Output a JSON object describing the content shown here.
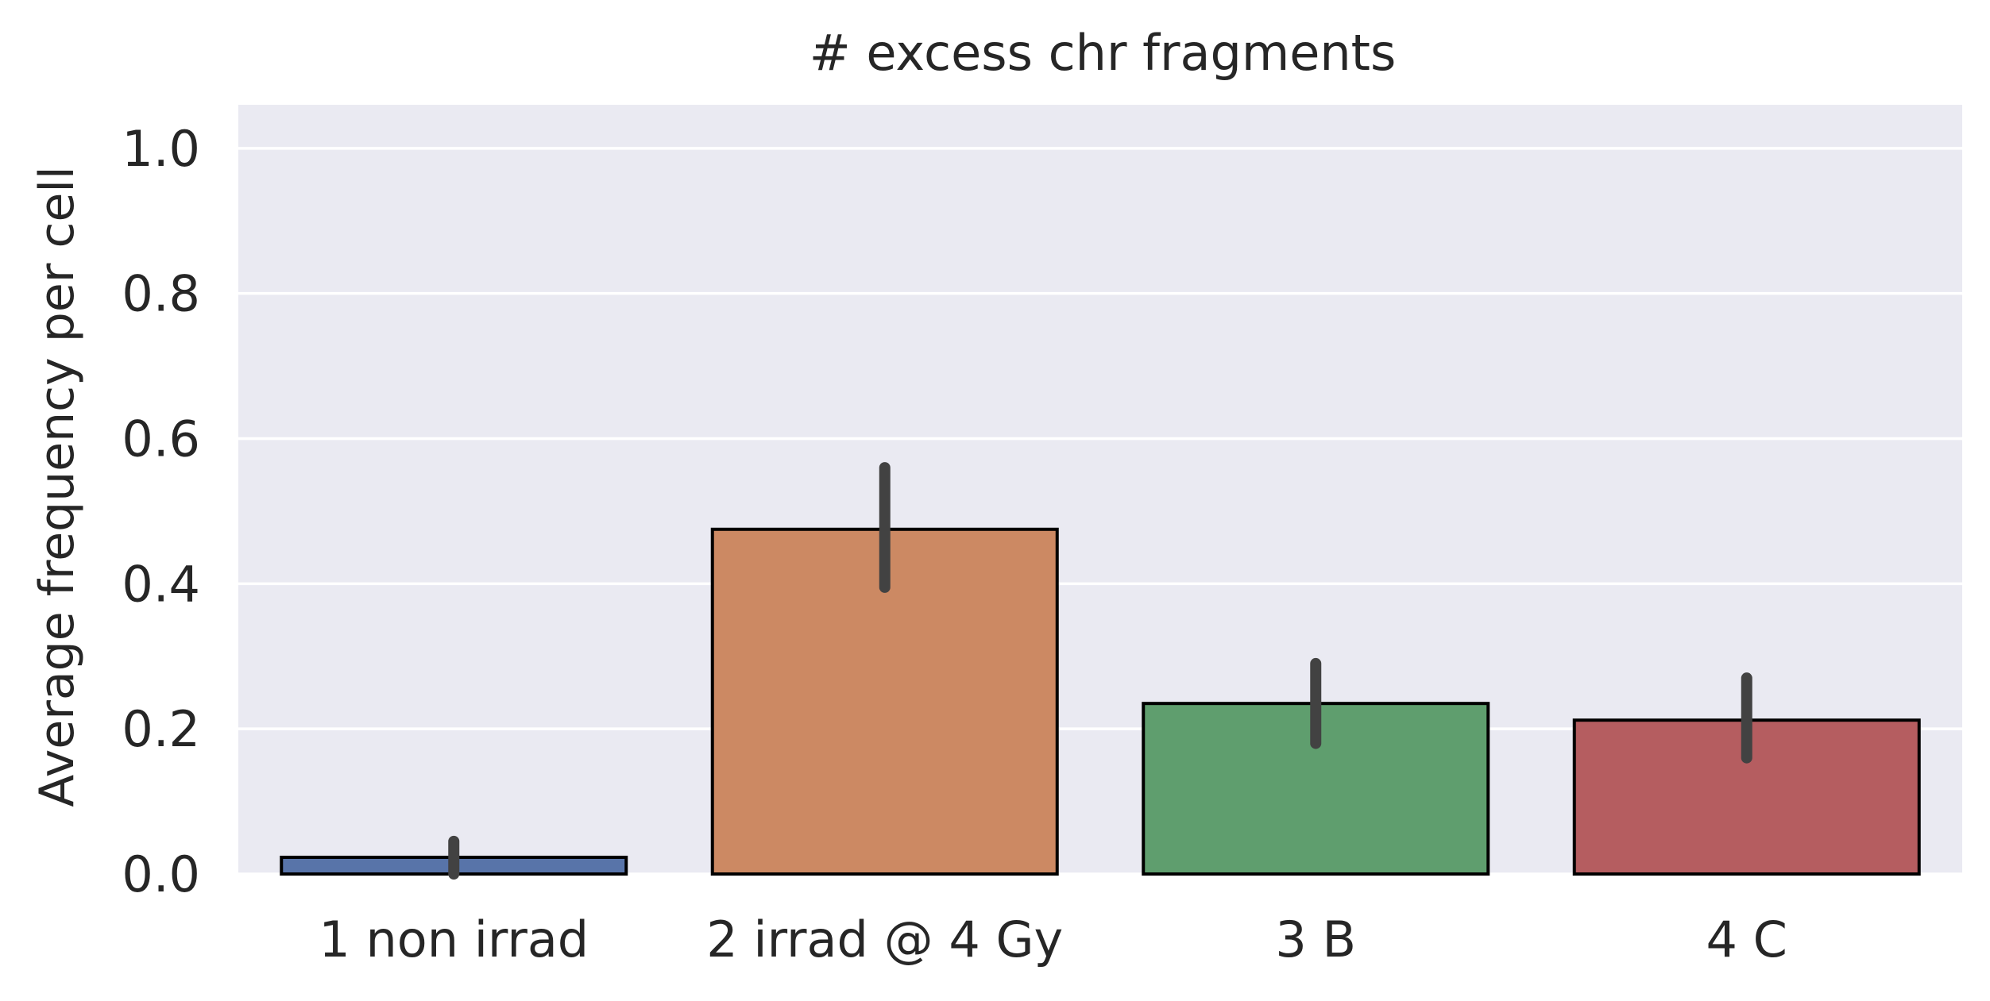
{
  "chart_data": {
    "type": "bar",
    "title": "# excess chr fragments",
    "xlabel": "",
    "ylabel": "Average frequency per cell",
    "categories": [
      "1 non irrad",
      "2 irrad @ 4 Gy",
      "3 B",
      "4 C"
    ],
    "values": [
      0.023,
      0.475,
      0.235,
      0.212
    ],
    "error_bars": [
      [
        0.0,
        0.045
      ],
      [
        0.395,
        0.56
      ],
      [
        0.18,
        0.29
      ],
      [
        0.16,
        0.27
      ]
    ],
    "colors": [
      "#5874a9",
      "#cc8963",
      "#5f9e6e",
      "#b55d60"
    ],
    "yticks": [
      "0.0",
      "0.2",
      "0.4",
      "0.6",
      "0.8",
      "1.0"
    ],
    "ylim": [
      0,
      1.06
    ],
    "grid": true,
    "style": {
      "plot_background": "#eaeaf2",
      "grid_color": "#ffffff",
      "bar_edge_color": "#000000",
      "error_bar_color": "#424242",
      "text_color": "#262626"
    }
  }
}
